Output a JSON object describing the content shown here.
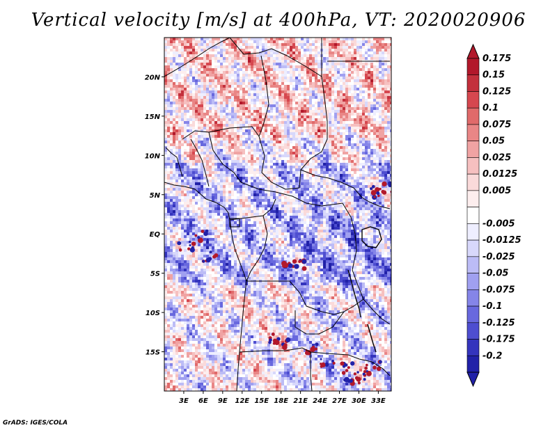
{
  "title": "Vertical velocity [m/s] at 400hPa, VT: 2020020906",
  "credit": "GrADS: IGES/COLA",
  "map": {
    "lon_range": [
      0,
      35
    ],
    "lat_range": [
      -20,
      25
    ],
    "lat_ticks": [
      {
        "value": 20,
        "label": "20N"
      },
      {
        "value": 15,
        "label": "15N"
      },
      {
        "value": 10,
        "label": "10N"
      },
      {
        "value": 5,
        "label": "5N"
      },
      {
        "value": 0,
        "label": "EQ"
      },
      {
        "value": -5,
        "label": "5S"
      },
      {
        "value": -10,
        "label": "10S"
      },
      {
        "value": -15,
        "label": "15S"
      }
    ],
    "lon_ticks": [
      {
        "value": 3,
        "label": "3E"
      },
      {
        "value": 6,
        "label": "6E"
      },
      {
        "value": 9,
        "label": "9E"
      },
      {
        "value": 12,
        "label": "12E"
      },
      {
        "value": 15,
        "label": "15E"
      },
      {
        "value": 18,
        "label": "18E"
      },
      {
        "value": 21,
        "label": "21E"
      },
      {
        "value": 24,
        "label": "24E"
      },
      {
        "value": 27,
        "label": "27E"
      },
      {
        "value": 30,
        "label": "30E"
      },
      {
        "value": 33,
        "label": "33E"
      }
    ]
  },
  "colorbar": {
    "levels": [
      {
        "label": "0.175",
        "color": "#b2182b"
      },
      {
        "label": "0.15",
        "color": "#c3303c"
      },
      {
        "label": "0.125",
        "color": "#d6474f"
      },
      {
        "label": "0.1",
        "color": "#e06a6a"
      },
      {
        "label": "0.075",
        "color": "#e98686"
      },
      {
        "label": "0.05",
        "color": "#f0a3a3"
      },
      {
        "label": "0.025",
        "color": "#f6c0c0"
      },
      {
        "label": "0.0125",
        "color": "#fadada"
      },
      {
        "label": "0.005",
        "color": "#fdeeee"
      },
      {
        "label": "",
        "color": "#ffffff"
      },
      {
        "label": "-0.005",
        "color": "#eeeeff"
      },
      {
        "label": "-0.0125",
        "color": "#d8d8fb"
      },
      {
        "label": "-0.025",
        "color": "#bcbcf6"
      },
      {
        "label": "-0.05",
        "color": "#a0a0f0"
      },
      {
        "label": "-0.075",
        "color": "#8585e8"
      },
      {
        "label": "-0.1",
        "color": "#6868de"
      },
      {
        "label": "-0.125",
        "color": "#4e4ed0"
      },
      {
        "label": "-0.175",
        "color": "#3434bd"
      },
      {
        "label": "-0.2",
        "color": "#2121a8"
      }
    ],
    "top_color": "#b2182b",
    "bottom_color": "#2121a8"
  }
}
